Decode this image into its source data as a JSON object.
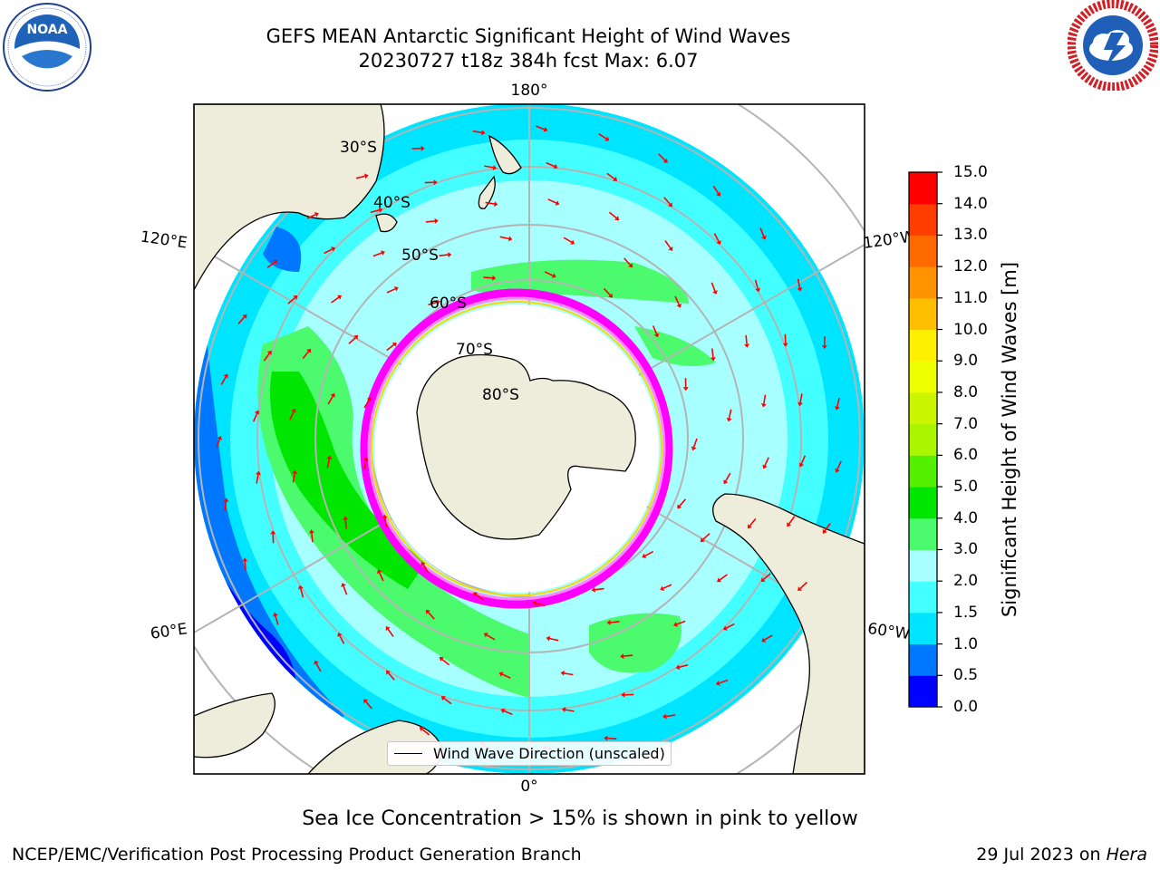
{
  "header": {
    "title_line1": "GEFS MEAN Antarctic Significant Height of Wind Waves",
    "title_line2": "20230727 t18z 384h fcst   Max: 6.07"
  },
  "logos": {
    "noaa_text": "NOAA",
    "noaa_ring": "NATIONAL OCEANIC AND ATMOSPHERIC ADMINISTRATION · U.S. DEPARTMENT OF COMMERCE",
    "nws_ring": "NATIONAL WEATHER SERVICE"
  },
  "map": {
    "projection": "south-polar-stereographic",
    "lon_labels": [
      "180°",
      "120°E",
      "120°W",
      "60°E",
      "60°W",
      "0°"
    ],
    "lat_labels": [
      "30°S",
      "40°S",
      "50°S",
      "60°S",
      "70°S",
      "80°S"
    ],
    "legend_text": "Wind Wave Direction (unscaled)"
  },
  "colorbar": {
    "label": "Significant Height of Wind Waves [m]",
    "ticks": [
      "15.0",
      "14.0",
      "13.0",
      "12.0",
      "11.0",
      "10.0",
      "9.0",
      "8.0",
      "7.0",
      "6.0",
      "5.0",
      "4.0",
      "3.0",
      "2.0",
      "1.5",
      "1.0",
      "0.5",
      "0.0"
    ],
    "bands": [
      {
        "from": 0.0,
        "to": 0.5,
        "color": "#0000ff"
      },
      {
        "from": 0.5,
        "to": 1.0,
        "color": "#0077ff"
      },
      {
        "from": 1.0,
        "to": 1.5,
        "color": "#00e5ff"
      },
      {
        "from": 1.5,
        "to": 2.0,
        "color": "#44ffff"
      },
      {
        "from": 2.0,
        "to": 3.0,
        "color": "#a8ffff"
      },
      {
        "from": 3.0,
        "to": 4.0,
        "color": "#4cfa6e"
      },
      {
        "from": 4.0,
        "to": 5.0,
        "color": "#00e600"
      },
      {
        "from": 5.0,
        "to": 6.0,
        "color": "#55f000"
      },
      {
        "from": 6.0,
        "to": 7.0,
        "color": "#aaf500"
      },
      {
        "from": 7.0,
        "to": 8.0,
        "color": "#ccf500"
      },
      {
        "from": 8.0,
        "to": 9.0,
        "color": "#eeff00"
      },
      {
        "from": 9.0,
        "to": 10.0,
        "color": "#fff000"
      },
      {
        "from": 10.0,
        "to": 11.0,
        "color": "#ffbe00"
      },
      {
        "from": 11.0,
        "to": 12.0,
        "color": "#ff9400"
      },
      {
        "from": 12.0,
        "to": 13.0,
        "color": "#ff6a00"
      },
      {
        "from": 13.0,
        "to": 14.0,
        "color": "#ff3d00"
      },
      {
        "from": 14.0,
        "to": 15.0,
        "color": "#ff0000"
      }
    ]
  },
  "footer": {
    "note": "Sea Ice Concentration > 15% is shown in pink to yellow",
    "left": "NCEP/EMC/Verification Post Processing Product Generation Branch",
    "date": "29 Jul 2023 on ",
    "host": "Hera"
  },
  "colors": {
    "land": "#eeecdb",
    "ice_edge": [
      "#ff00ff",
      "#ff88ff",
      "#ffd700"
    ],
    "arrow": "#ff0000",
    "grid": "#b4b4b4"
  }
}
